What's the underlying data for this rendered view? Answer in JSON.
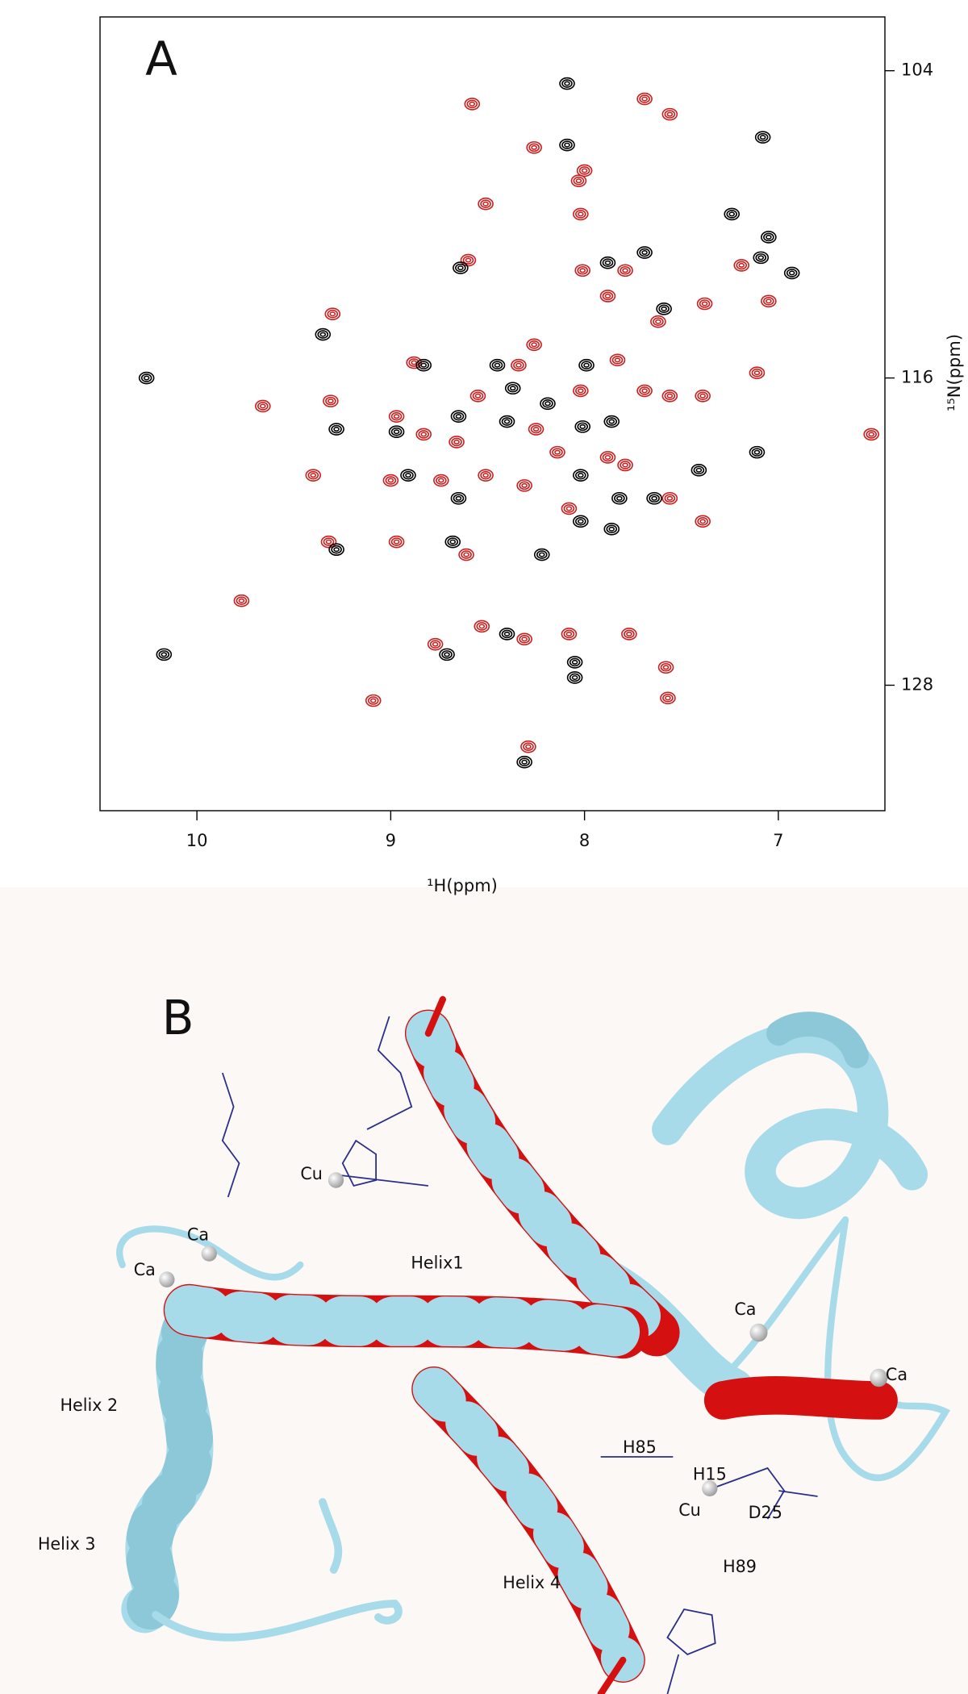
{
  "chart_data": {
    "type": "scatter",
    "title": "A",
    "x_label": "¹H(ppm)",
    "y_label": "¹⁵N(ppm)",
    "xlim": [
      10.5,
      6.45
    ],
    "ylim": [
      101.9,
      132.9
    ],
    "xticks": [
      10,
      9,
      8,
      7
    ],
    "yticks": [
      104,
      116,
      128
    ],
    "series": [
      {
        "color": "#cc1f1f",
        "x": [
          8.58,
          7.69,
          7.56,
          8.26,
          8.03,
          8.02,
          8.51,
          8.6,
          8.01,
          7.79,
          7.88,
          7.62,
          7.38,
          7.19,
          7.05,
          7.11,
          9.3,
          8.88,
          8.26,
          8.34,
          8.02,
          7.83,
          7.69,
          9.31,
          8.97,
          9.66,
          8.55,
          8.25,
          8.83,
          8.66,
          8.14,
          7.88,
          7.56,
          7.39,
          9.4,
          9.0,
          8.74,
          8.51,
          8.31,
          7.79,
          7.56,
          7.39,
          9.32,
          8.97,
          8.61,
          8.08,
          9.77,
          8.77,
          8.53,
          8.31,
          8.08,
          7.77,
          7.58,
          9.09,
          7.57,
          8.29,
          6.52,
          8.0
        ],
        "values": [
          105.3,
          105.1,
          105.7,
          107.0,
          108.3,
          109.6,
          109.2,
          111.4,
          111.8,
          111.8,
          112.8,
          113.8,
          113.1,
          111.6,
          113.0,
          115.8,
          113.5,
          115.4,
          114.7,
          115.5,
          116.5,
          115.3,
          116.5,
          116.9,
          117.5,
          117.1,
          116.7,
          118.0,
          118.2,
          118.5,
          118.9,
          119.1,
          116.7,
          116.7,
          119.8,
          120.0,
          120.0,
          119.8,
          120.2,
          119.4,
          120.7,
          121.6,
          122.4,
          122.4,
          122.9,
          121.1,
          124.7,
          126.4,
          125.7,
          126.2,
          126.0,
          126.0,
          127.3,
          128.6,
          128.5,
          130.4,
          118.2,
          107.9
        ]
      },
      {
        "color": "#000000",
        "x": [
          10.26,
          8.09,
          8.09,
          7.08,
          7.24,
          7.05,
          6.93,
          7.88,
          7.69,
          7.59,
          8.64,
          9.35,
          8.83,
          8.45,
          7.99,
          8.37,
          8.19,
          8.65,
          8.97,
          9.28,
          8.4,
          8.01,
          7.86,
          7.41,
          7.11,
          8.91,
          8.65,
          8.02,
          7.82,
          7.64,
          8.02,
          7.86,
          8.22,
          8.68,
          9.28,
          8.4,
          8.71,
          8.05,
          8.05,
          8.31,
          10.17,
          7.09
        ],
        "values": [
          116.0,
          104.5,
          106.9,
          106.6,
          109.6,
          110.5,
          111.9,
          111.5,
          111.1,
          113.3,
          111.7,
          114.3,
          115.5,
          115.5,
          115.5,
          116.4,
          117.0,
          117.5,
          118.1,
          118.0,
          117.7,
          117.9,
          117.7,
          119.6,
          118.9,
          119.8,
          120.7,
          119.8,
          120.7,
          120.7,
          121.6,
          121.9,
          122.9,
          122.4,
          122.7,
          126.0,
          126.8,
          127.1,
          127.7,
          131.0,
          126.8,
          111.3
        ]
      }
    ]
  },
  "panel_b": {
    "label": "B",
    "labels": [
      "Cu",
      "Ca",
      "Ca",
      "Helix1",
      "Ca",
      "Ca",
      "Helix 2",
      "Helix 3",
      "H85",
      "H15",
      "Cu",
      "D25",
      "H89",
      "Helix 4"
    ]
  }
}
